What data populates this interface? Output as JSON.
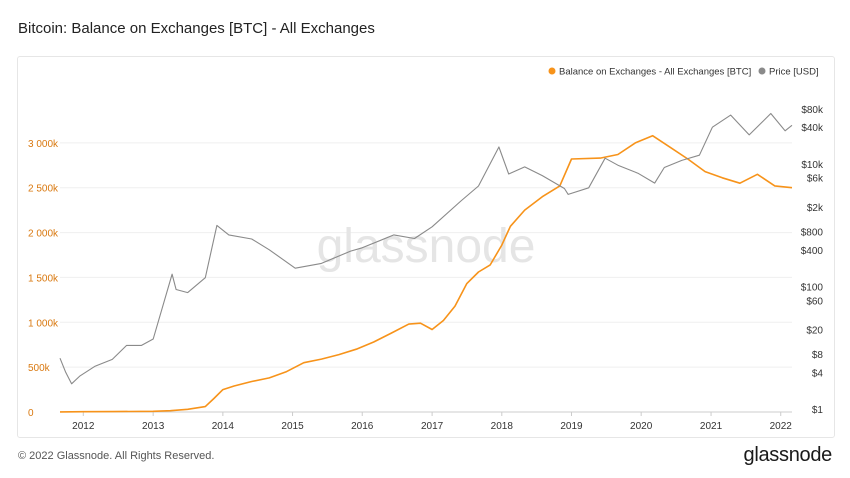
{
  "page": {
    "title": "Bitcoin: Balance on Exchanges [BTC] - All Exchanges",
    "footer": "© 2022 Glassnode. All Rights Reserved.",
    "logo": "glassnode",
    "watermark": "glassnode"
  },
  "colors": {
    "balance": "#f7931a",
    "price": "#8a8a8a",
    "left_ticks": "#d9780f",
    "right_ticks": "#333333",
    "grid": "#efefef",
    "watermark": "#e5e5e5"
  },
  "chart_data": {
    "type": "line",
    "title": "Bitcoin: Balance on Exchanges [BTC] - All Exchanges",
    "grid": true,
    "legend": {
      "position": "top-right",
      "entries": [
        {
          "label": "Balance on Exchanges - All Exchanges [BTC]",
          "color": "#f7931a"
        },
        {
          "label": "Price [USD]",
          "color": "#8a8a8a"
        }
      ]
    },
    "x_axis": {
      "type": "time",
      "range": [
        "2011-09-01",
        "2022-03-01"
      ],
      "ticks": [
        "2012",
        "2013",
        "2014",
        "2015",
        "2016",
        "2017",
        "2018",
        "2019",
        "2020",
        "2021",
        "2022"
      ]
    },
    "y_left": {
      "scale": "linear",
      "range": [
        0,
        3500000
      ],
      "ticks": [
        {
          "value": 0,
          "label": "0"
        },
        {
          "value": 500000,
          "label": "500k"
        },
        {
          "value": 1000000,
          "label": "1 000k"
        },
        {
          "value": 1500000,
          "label": "1 500k"
        },
        {
          "value": 2000000,
          "label": "2 000k"
        },
        {
          "value": 2500000,
          "label": "2 500k"
        },
        {
          "value": 3000000,
          "label": "3 000k"
        }
      ]
    },
    "y_right": {
      "scale": "log",
      "range": [
        0.9,
        120000
      ],
      "ticks": [
        {
          "value": 1,
          "label": "$1"
        },
        {
          "value": 4,
          "label": "$4"
        },
        {
          "value": 8,
          "label": "$8"
        },
        {
          "value": 20,
          "label": "$20"
        },
        {
          "value": 60,
          "label": "$60"
        },
        {
          "value": 100,
          "label": "$100"
        },
        {
          "value": 400,
          "label": "$400"
        },
        {
          "value": 800,
          "label": "$800"
        },
        {
          "value": 2000,
          "label": "$2k"
        },
        {
          "value": 6000,
          "label": "$6k"
        },
        {
          "value": 10000,
          "label": "$10k"
        },
        {
          "value": 40000,
          "label": "$40k"
        },
        {
          "value": 80000,
          "label": "$80k"
        }
      ]
    },
    "series": [
      {
        "name": "Balance on Exchanges - All Exchanges [BTC]",
        "axis": "left",
        "points": [
          [
            "2011-09-01",
            1000
          ],
          [
            "2012-01-01",
            3000
          ],
          [
            "2012-06-01",
            5000
          ],
          [
            "2013-01-01",
            8000
          ],
          [
            "2013-04-01",
            15000
          ],
          [
            "2013-07-01",
            30000
          ],
          [
            "2013-10-01",
            60000
          ],
          [
            "2013-11-15",
            150000
          ],
          [
            "2014-01-01",
            250000
          ],
          [
            "2014-03-01",
            290000
          ],
          [
            "2014-06-01",
            340000
          ],
          [
            "2014-09-01",
            380000
          ],
          [
            "2014-12-01",
            450000
          ],
          [
            "2015-03-01",
            550000
          ],
          [
            "2015-06-01",
            590000
          ],
          [
            "2015-09-01",
            640000
          ],
          [
            "2015-12-01",
            700000
          ],
          [
            "2016-03-01",
            780000
          ],
          [
            "2016-06-01",
            880000
          ],
          [
            "2016-09-01",
            980000
          ],
          [
            "2016-11-01",
            990000
          ],
          [
            "2017-01-01",
            920000
          ],
          [
            "2017-03-01",
            1020000
          ],
          [
            "2017-05-01",
            1180000
          ],
          [
            "2017-07-01",
            1430000
          ],
          [
            "2017-09-01",
            1560000
          ],
          [
            "2017-11-01",
            1640000
          ],
          [
            "2018-01-01",
            1860000
          ],
          [
            "2018-02-15",
            2070000
          ],
          [
            "2018-05-01",
            2250000
          ],
          [
            "2018-08-01",
            2400000
          ],
          [
            "2018-11-01",
            2520000
          ],
          [
            "2019-01-01",
            2820000
          ],
          [
            "2019-06-01",
            2830000
          ],
          [
            "2019-09-01",
            2870000
          ],
          [
            "2019-12-01",
            3000000
          ],
          [
            "2020-03-01",
            3080000
          ],
          [
            "2020-06-01",
            2950000
          ],
          [
            "2020-09-01",
            2820000
          ],
          [
            "2020-12-01",
            2680000
          ],
          [
            "2021-03-01",
            2610000
          ],
          [
            "2021-06-01",
            2550000
          ],
          [
            "2021-09-01",
            2650000
          ],
          [
            "2021-12-01",
            2520000
          ],
          [
            "2022-03-01",
            2500000
          ]
        ]
      },
      {
        "name": "Price [USD]",
        "axis": "right",
        "points": [
          [
            "2011-09-01",
            6.8
          ],
          [
            "2011-10-01",
            4.0
          ],
          [
            "2011-11-01",
            2.6
          ],
          [
            "2011-12-15",
            3.5
          ],
          [
            "2012-03-01",
            5.0
          ],
          [
            "2012-06-01",
            6.5
          ],
          [
            "2012-08-15",
            11
          ],
          [
            "2012-11-01",
            11
          ],
          [
            "2013-01-01",
            14
          ],
          [
            "2013-04-10",
            160
          ],
          [
            "2013-05-01",
            90
          ],
          [
            "2013-07-01",
            80
          ],
          [
            "2013-10-01",
            140
          ],
          [
            "2013-12-01",
            1000
          ],
          [
            "2014-02-01",
            700
          ],
          [
            "2014-06-01",
            600
          ],
          [
            "2014-09-01",
            400
          ],
          [
            "2015-01-15",
            200
          ],
          [
            "2015-06-01",
            240
          ],
          [
            "2015-11-01",
            380
          ],
          [
            "2016-01-01",
            430
          ],
          [
            "2016-06-15",
            700
          ],
          [
            "2016-10-01",
            610
          ],
          [
            "2017-01-01",
            950
          ],
          [
            "2017-06-01",
            2500
          ],
          [
            "2017-09-01",
            4400
          ],
          [
            "2017-12-17",
            19000
          ],
          [
            "2018-02-06",
            6900
          ],
          [
            "2018-05-01",
            9000
          ],
          [
            "2018-08-01",
            6500
          ],
          [
            "2018-11-25",
            4000
          ],
          [
            "2018-12-15",
            3200
          ],
          [
            "2019-04-01",
            4100
          ],
          [
            "2019-06-26",
            12500
          ],
          [
            "2019-09-01",
            9600
          ],
          [
            "2019-12-15",
            7100
          ],
          [
            "2020-03-12",
            4900
          ],
          [
            "2020-05-01",
            8800
          ],
          [
            "2020-08-01",
            11500
          ],
          [
            "2020-11-01",
            14000
          ],
          [
            "2021-01-08",
            40000
          ],
          [
            "2021-04-14",
            63000
          ],
          [
            "2021-07-20",
            30000
          ],
          [
            "2021-11-10",
            67000
          ],
          [
            "2022-01-24",
            35000
          ],
          [
            "2022-03-01",
            43000
          ]
        ]
      }
    ]
  }
}
